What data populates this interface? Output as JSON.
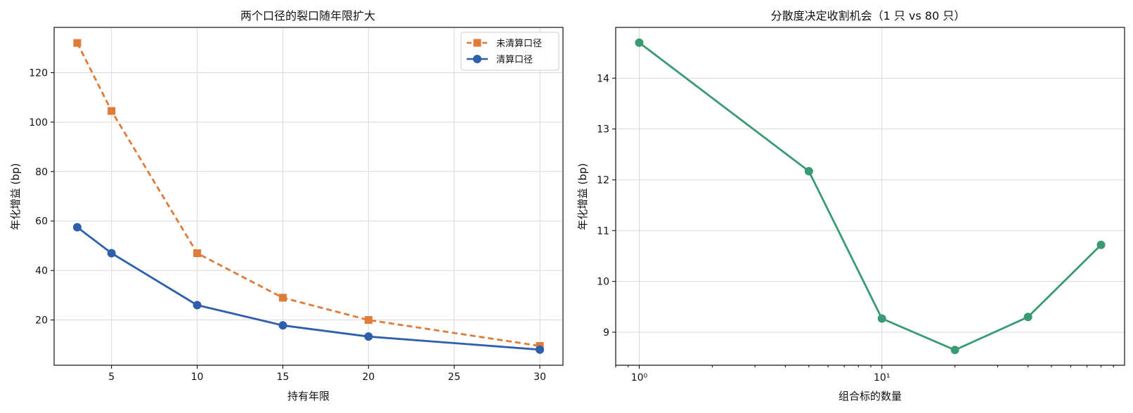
{
  "chart_data": [
    {
      "type": "line",
      "title": "两个口径的裂口随年限扩大",
      "xlabel": "持有年限",
      "ylabel": "年化增益 (bp)",
      "x": [
        3,
        5,
        10,
        15,
        20,
        30
      ],
      "xlim": [
        1.65,
        31.35
      ],
      "ylim": [
        1.7,
        138.3
      ],
      "xticks": [
        5,
        10,
        15,
        20,
        25,
        30
      ],
      "yticks": [
        20,
        40,
        60,
        80,
        100,
        120
      ],
      "grid": true,
      "legend_position": "top-right",
      "series": [
        {
          "name": "未清算口径",
          "values": [
            132,
            104.5,
            47,
            29,
            20,
            9.5
          ],
          "color": "#e07b39",
          "marker": "square",
          "linestyle": "dashed"
        },
        {
          "name": "清算口径",
          "values": [
            57.5,
            47,
            26,
            17.8,
            13.3,
            8
          ],
          "color": "#2e5fab",
          "marker": "circle",
          "linestyle": "solid"
        }
      ]
    },
    {
      "type": "line",
      "title": "分散度决定收割机会（1 只 vs 80 只）",
      "xlabel": "组合标的数量",
      "ylabel": "年化增益 (bp)",
      "xscale": "log",
      "x": [
        1,
        5,
        10,
        20,
        40,
        80
      ],
      "xlim": [
        0.8,
        100
      ],
      "ylim": [
        8.35,
        15
      ],
      "yticks": [
        9,
        10,
        11,
        12,
        13,
        14
      ],
      "xtick_labels": [
        "10⁰",
        "10¹"
      ],
      "grid": true,
      "series": [
        {
          "values": [
            14.7,
            12.17,
            9.27,
            8.65,
            9.3,
            10.72
          ],
          "color": "#3a9a72",
          "marker": "circle",
          "linestyle": "solid"
        }
      ]
    }
  ]
}
